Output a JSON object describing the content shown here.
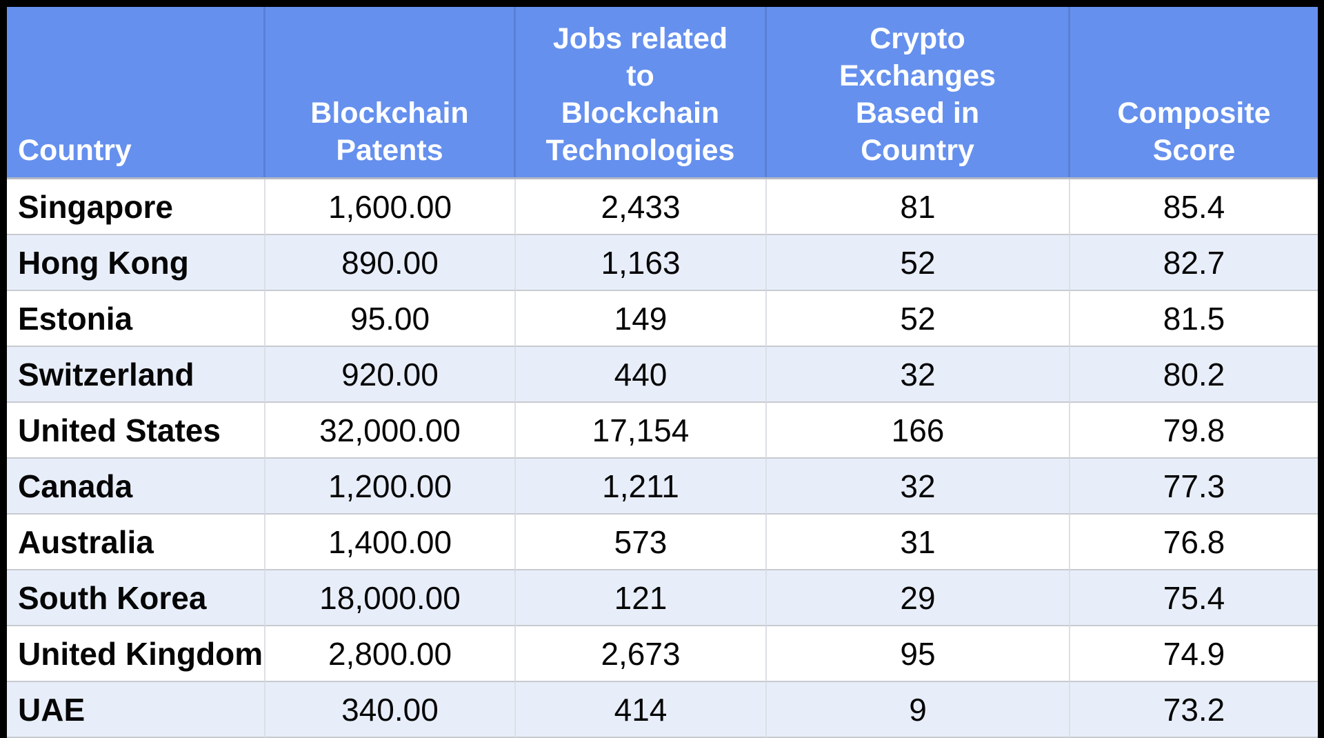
{
  "colors": {
    "header_bg": "#6590ee",
    "header_divider": "#5a7fd6",
    "header_text": "#ffffff",
    "row_bg": "#ffffff",
    "row_alt_bg": "#e8eef9",
    "grid_line_horizontal": "#c7cad0",
    "grid_line_vertical": "#dbdfe6",
    "frame_border": "#000000",
    "body_text": "#060606"
  },
  "table": {
    "headers": [
      {
        "id": "country",
        "text": "Country"
      },
      {
        "id": "blockchain-patents",
        "text": "Blockchain\nPatents"
      },
      {
        "id": "jobs-related",
        "text": "Jobs related\nto\nBlockchain\nTechnologies"
      },
      {
        "id": "crypto-exchanges",
        "text": "Crypto\nExchanges\nBased in\nCountry"
      },
      {
        "id": "composite-score",
        "text": "Composite\nScore"
      }
    ],
    "rows": [
      {
        "cells": [
          "Singapore",
          "1,600.00",
          "2,433",
          "81",
          "85.4"
        ]
      },
      {
        "cells": [
          "Hong Kong",
          "890.00",
          "1,163",
          "52",
          "82.7"
        ]
      },
      {
        "cells": [
          "Estonia",
          "95.00",
          "149",
          "52",
          "81.5"
        ]
      },
      {
        "cells": [
          "Switzerland",
          "920.00",
          "440",
          "32",
          "80.2"
        ]
      },
      {
        "cells": [
          "United States",
          "32,000.00",
          "17,154",
          "166",
          "79.8"
        ]
      },
      {
        "cells": [
          "Canada",
          "1,200.00",
          "1,211",
          "32",
          "77.3"
        ]
      },
      {
        "cells": [
          "Australia",
          "1,400.00",
          "573",
          "31",
          "76.8"
        ]
      },
      {
        "cells": [
          "South Korea",
          "18,000.00",
          "121",
          "29",
          "75.4"
        ]
      },
      {
        "cells": [
          "United Kingdom",
          "2,800.00",
          "2,673",
          "95",
          "74.9"
        ]
      },
      {
        "cells": [
          "UAE",
          "340.00",
          "414",
          "9",
          "73.2"
        ]
      }
    ]
  },
  "chart_data": {
    "type": "table",
    "title": "",
    "columns": [
      "Country",
      "Blockchain Patents",
      "Jobs related to Blockchain Technologies",
      "Crypto Exchanges Based in Country",
      "Composite Score"
    ],
    "rows": [
      [
        "Singapore",
        1600.0,
        2433,
        81,
        85.4
      ],
      [
        "Hong Kong",
        890.0,
        1163,
        52,
        82.7
      ],
      [
        "Estonia",
        95.0,
        149,
        52,
        81.5
      ],
      [
        "Switzerland",
        920.0,
        440,
        32,
        80.2
      ],
      [
        "United States",
        32000.0,
        17154,
        166,
        79.8
      ],
      [
        "Canada",
        1200.0,
        1211,
        32,
        77.3
      ],
      [
        "Australia",
        1400.0,
        573,
        31,
        76.8
      ],
      [
        "South Korea",
        18000.0,
        121,
        29,
        75.4
      ],
      [
        "United Kingdom",
        2800.0,
        2673,
        95,
        74.9
      ],
      [
        "UAE",
        340.0,
        414,
        9,
        73.2
      ]
    ],
    "layout_hints": {
      "striped_rows": true,
      "first_row_stripe": "white",
      "header_bottom_aligned": true,
      "last_row_clipped_at_bottom": true,
      "country_column_text_clipped": "United Kingdom"
    }
  }
}
